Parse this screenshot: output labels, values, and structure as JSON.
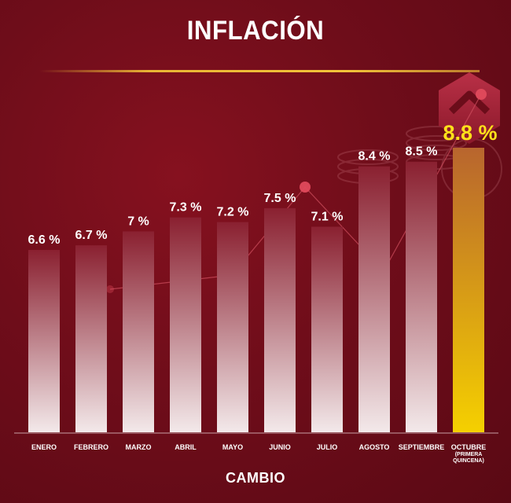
{
  "header": {
    "title": "INFLACIÓN"
  },
  "footer": {
    "brand": "CAMBIO"
  },
  "chart_data": {
    "type": "bar",
    "title": "INFLACIÓN",
    "categories": [
      "ENERO",
      "FEBRERO",
      "MARZO",
      "ABRIL",
      "MAYO",
      "JUNIO",
      "JULIO",
      "AGOSTO",
      "SEPTIEMBRE",
      "OCTUBRE"
    ],
    "category_notes": [
      "",
      "",
      "",
      "",
      "",
      "",
      "",
      "",
      "",
      "(PRIMERA QUINCENA)"
    ],
    "values": [
      6.6,
      6.7,
      7,
      7.3,
      7.2,
      7.5,
      7.1,
      8.4,
      8.5,
      8.8
    ],
    "value_labels": [
      "6.6 %",
      "6.7 %",
      "7 %",
      "7.3 %",
      "7.2 %",
      "7.5 %",
      "7.1 %",
      "8.4 %",
      "8.5 %",
      "8.8 %"
    ],
    "highlight_index": 9,
    "xlabel": "",
    "ylabel": "",
    "ylim": [
      0,
      10
    ],
    "grid": false,
    "colors": {
      "bar_top": "#8a2030",
      "bar_bottom": "#f3e9ea",
      "highlight_top": "#c0792a",
      "highlight_bottom": "#f5d000",
      "highlight_label": "#ffe11a",
      "accent_line": "#e9b535"
    }
  }
}
